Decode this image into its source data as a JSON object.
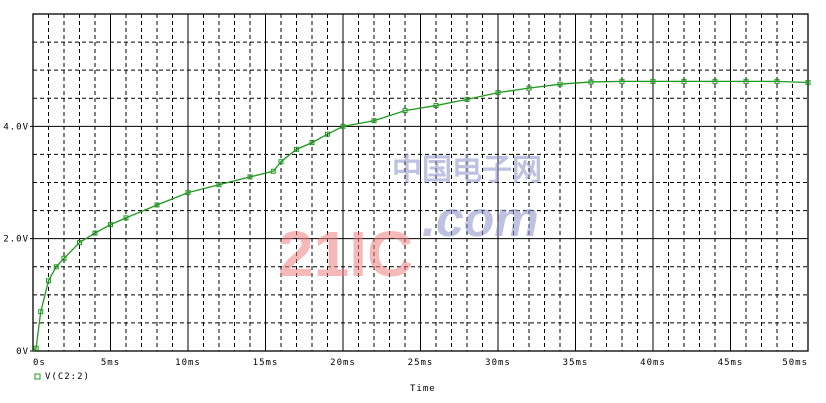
{
  "chart_data": {
    "type": "line",
    "title": "",
    "xlabel": "Time",
    "ylabel": "",
    "xlim_ms": [
      0,
      50
    ],
    "ylim": [
      0,
      6
    ],
    "grid": true,
    "legend_placement": "bottom-left",
    "x_ticks": [
      {
        "value": 0,
        "label": "0s"
      },
      {
        "value": 5,
        "label": "5ms"
      },
      {
        "value": 10,
        "label": "10ms"
      },
      {
        "value": 15,
        "label": "15ms"
      },
      {
        "value": 20,
        "label": "20ms"
      },
      {
        "value": 25,
        "label": "25ms"
      },
      {
        "value": 30,
        "label": "30ms"
      },
      {
        "value": 35,
        "label": "35ms"
      },
      {
        "value": 40,
        "label": "40ms"
      },
      {
        "value": 45,
        "label": "45ms"
      },
      {
        "value": 50,
        "label": "50ms"
      }
    ],
    "y_ticks": [
      {
        "value": 0,
        "label": "0V"
      },
      {
        "value": 2,
        "label": "2.0V"
      },
      {
        "value": 4,
        "label": "4.0V"
      }
    ],
    "series": [
      {
        "name": "V(C2:2)",
        "color": "#1f9a1f",
        "x": [
          0.2,
          0.5,
          1,
          1.5,
          2,
          3,
          4,
          5,
          6,
          8,
          10,
          12,
          14,
          15.5,
          16,
          17,
          18,
          19,
          20,
          22,
          24,
          26,
          28,
          30,
          32,
          34,
          36,
          38,
          40,
          42,
          44,
          46,
          48,
          50
        ],
        "y": [
          0.05,
          0.7,
          1.25,
          1.5,
          1.65,
          1.93,
          2.1,
          2.25,
          2.37,
          2.6,
          2.82,
          2.96,
          3.1,
          3.2,
          3.37,
          3.59,
          3.71,
          3.86,
          4.0,
          4.1,
          4.28,
          4.37,
          4.48,
          4.6,
          4.68,
          4.75,
          4.79,
          4.8,
          4.8,
          4.8,
          4.8,
          4.8,
          4.8,
          4.78
        ]
      }
    ]
  },
  "watermark": {
    "text": "21IC.com",
    "cn_text": "中国电子网"
  }
}
